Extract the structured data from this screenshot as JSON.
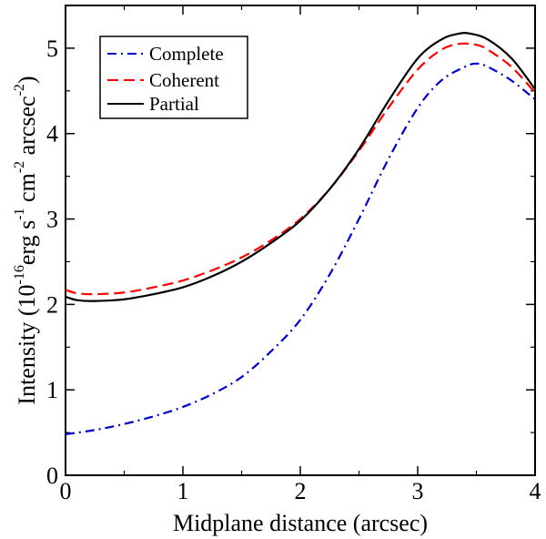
{
  "chart_data": {
    "type": "line",
    "xlabel": "Midplane distance (arcsec)",
    "ylabel": {
      "prefix": "Intensity (10",
      "exp1": "-16",
      "erg": "erg s",
      "exp2": "-1",
      "cm": " cm",
      "exp3": "-2",
      "arcsec": " arcsec",
      "exp4": "-2",
      "suffix": ")"
    },
    "xlim": [
      0,
      4
    ],
    "ylim": [
      0,
      5.5
    ],
    "xticks": [
      "0",
      "1",
      "2",
      "3",
      "4"
    ],
    "yticks": [
      "0",
      "1",
      "2",
      "3",
      "4",
      "5"
    ],
    "legend_position": "top-left",
    "series": [
      {
        "name": "Complete",
        "color": "#0000cc",
        "dash": "dashdot",
        "x": [
          0,
          0.25,
          0.5,
          0.75,
          1.0,
          1.25,
          1.5,
          1.75,
          2.0,
          2.25,
          2.5,
          2.75,
          3.0,
          3.2,
          3.4,
          3.5,
          3.6,
          3.8,
          4.0
        ],
        "y": [
          0.48,
          0.53,
          0.6,
          0.69,
          0.8,
          0.95,
          1.15,
          1.45,
          1.82,
          2.35,
          3.0,
          3.7,
          4.3,
          4.62,
          4.78,
          4.82,
          4.78,
          4.62,
          4.4
        ]
      },
      {
        "name": "Coherent",
        "color": "#ff0000",
        "dash": "dashed",
        "x": [
          0,
          0.1,
          0.25,
          0.5,
          0.75,
          1.0,
          1.25,
          1.5,
          1.75,
          2.0,
          2.25,
          2.5,
          2.75,
          3.0,
          3.2,
          3.35,
          3.5,
          3.6,
          3.8,
          4.0
        ],
        "y": [
          2.17,
          2.13,
          2.12,
          2.14,
          2.2,
          2.28,
          2.4,
          2.55,
          2.75,
          3.0,
          3.35,
          3.8,
          4.3,
          4.75,
          4.98,
          5.05,
          5.04,
          4.98,
          4.78,
          4.48
        ]
      },
      {
        "name": "Partial",
        "color": "#000000",
        "dash": "solid",
        "x": [
          0,
          0.1,
          0.25,
          0.5,
          0.75,
          1.0,
          1.25,
          1.5,
          1.75,
          2.0,
          2.25,
          2.5,
          2.75,
          3.0,
          3.2,
          3.35,
          3.45,
          3.6,
          3.8,
          4.0
        ],
        "y": [
          2.09,
          2.05,
          2.04,
          2.06,
          2.12,
          2.2,
          2.33,
          2.5,
          2.72,
          2.98,
          3.35,
          3.82,
          4.38,
          4.88,
          5.1,
          5.17,
          5.17,
          5.1,
          4.88,
          4.52
        ]
      }
    ]
  }
}
